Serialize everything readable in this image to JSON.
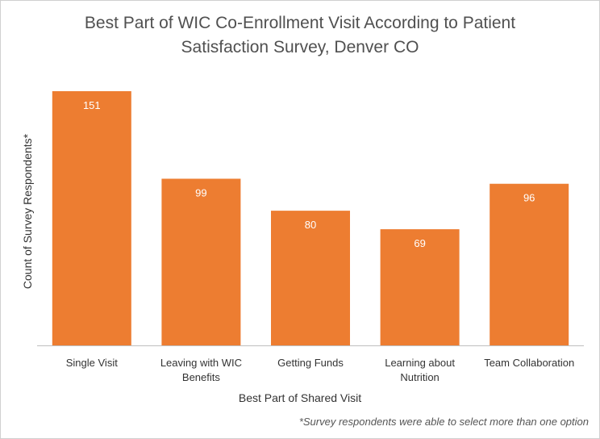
{
  "title_lines": [
    "Best Part of WIC Co-Enrollment Visit According to Patient",
    "Satisfaction Survey, Denver CO"
  ],
  "footnote": "*Survey respondents were able to select more than one option",
  "colors": {
    "bar": "#ED7D31",
    "axis": "#bfbfbf"
  },
  "chart_data": {
    "type": "bar",
    "title": "Best Part of WIC Co-Enrollment Visit According to Patient Satisfaction Survey, Denver CO",
    "xlabel": "Best Part of Shared Visit",
    "ylabel": "Count of Survey Respondents*",
    "categories": [
      [
        "Single Visit"
      ],
      [
        "Leaving with WIC",
        "Benefits"
      ],
      [
        "Getting Funds"
      ],
      [
        "Learning about",
        "Nutrition"
      ],
      [
        "Team Collaboration"
      ]
    ],
    "values": [
      151,
      99,
      80,
      69,
      96
    ],
    "data_labels": true,
    "grid": false,
    "legend": "none",
    "ylim": [
      0,
      151
    ]
  }
}
